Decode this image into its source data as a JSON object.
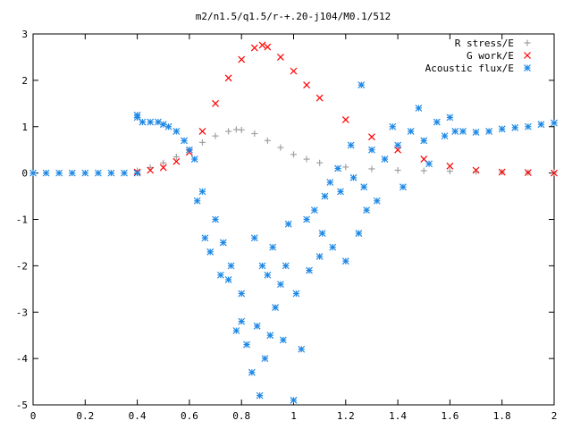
{
  "chart_data": {
    "type": "scatter",
    "title": "m2/n1.5/q1.5/r-+.20-j104/M0.1/512",
    "xlabel": "",
    "ylabel": "",
    "xlim": [
      0,
      2
    ],
    "ylim": [
      -5,
      3
    ],
    "x_ticks": [
      "0",
      "0.2",
      "0.4",
      "0.6",
      "0.8",
      "1",
      "1.2",
      "1.4",
      "1.6",
      "1.8",
      "2"
    ],
    "y_ticks": [
      "3",
      "2",
      "1",
      "0",
      "-1",
      "-2",
      "-3",
      "-4",
      "-5"
    ],
    "grid": false,
    "legend_position": "top-right",
    "series": [
      {
        "name": "R stress/E",
        "marker": "plus",
        "color": "#a0a0a0",
        "x": [
          0.4,
          0.45,
          0.5,
          0.55,
          0.6,
          0.65,
          0.7,
          0.75,
          0.78,
          0.8,
          0.85,
          0.9,
          0.95,
          1.0,
          1.05,
          1.1,
          1.2,
          1.3,
          1.4,
          1.5,
          1.6,
          1.7,
          1.8,
          1.9,
          2.0
        ],
        "y": [
          0.05,
          0.12,
          0.22,
          0.35,
          0.5,
          0.66,
          0.8,
          0.9,
          0.94,
          0.93,
          0.85,
          0.7,
          0.55,
          0.4,
          0.3,
          0.22,
          0.13,
          0.09,
          0.06,
          0.05,
          0.04,
          0.03,
          0.02,
          0.01,
          0.01
        ]
      },
      {
        "name": "G work/E",
        "marker": "cross",
        "color": "#ff0000",
        "x": [
          0.4,
          0.45,
          0.5,
          0.55,
          0.6,
          0.65,
          0.7,
          0.75,
          0.8,
          0.85,
          0.88,
          0.9,
          0.95,
          1.0,
          1.05,
          1.1,
          1.2,
          1.3,
          1.4,
          1.5,
          1.6,
          1.7,
          1.8,
          1.9,
          2.0
        ],
        "y": [
          0.02,
          0.06,
          0.12,
          0.25,
          0.45,
          0.9,
          1.5,
          2.05,
          2.45,
          2.7,
          2.76,
          2.72,
          2.5,
          2.2,
          1.9,
          1.62,
          1.15,
          0.78,
          0.5,
          0.3,
          0.15,
          0.06,
          0.02,
          0.01,
          0.0
        ]
      },
      {
        "name": "Acoustic flux/E",
        "marker": "star",
        "color": "#1e88e5",
        "x": [
          0.0,
          0.05,
          0.1,
          0.15,
          0.2,
          0.25,
          0.3,
          0.35,
          0.4,
          0.4,
          0.4,
          0.42,
          0.45,
          0.48,
          0.5,
          0.52,
          0.55,
          0.58,
          0.6,
          0.62,
          0.63,
          0.65,
          0.66,
          0.68,
          0.7,
          0.72,
          0.73,
          0.75,
          0.76,
          0.78,
          0.8,
          0.8,
          0.82,
          0.84,
          0.85,
          0.86,
          0.87,
          0.88,
          0.89,
          0.9,
          0.91,
          0.92,
          0.93,
          0.95,
          0.96,
          0.97,
          0.98,
          1.0,
          1.01,
          1.03,
          1.05,
          1.06,
          1.08,
          1.1,
          1.11,
          1.12,
          1.14,
          1.15,
          1.17,
          1.18,
          1.2,
          1.22,
          1.23,
          1.25,
          1.26,
          1.27,
          1.28,
          1.3,
          1.32,
          1.35,
          1.38,
          1.4,
          1.42,
          1.45,
          1.48,
          1.5,
          1.52,
          1.55,
          1.58,
          1.6,
          1.62,
          1.65,
          1.7,
          1.75,
          1.8,
          1.85,
          1.9,
          1.95,
          2.0
        ],
        "y": [
          0.0,
          0.0,
          0.0,
          0.0,
          0.0,
          0.0,
          0.0,
          0.0,
          0.0,
          1.2,
          1.25,
          1.1,
          1.1,
          1.1,
          1.05,
          1.0,
          0.9,
          0.7,
          0.5,
          0.3,
          -0.6,
          -0.4,
          -1.4,
          -1.7,
          -1.0,
          -2.2,
          -1.5,
          -2.3,
          -2.0,
          -3.4,
          -3.2,
          -2.6,
          -3.7,
          -4.3,
          -1.4,
          -3.3,
          -4.8,
          -2.0,
          -4.0,
          -2.2,
          -3.5,
          -1.6,
          -2.9,
          -2.4,
          -3.6,
          -2.0,
          -1.1,
          -4.9,
          -2.6,
          -3.8,
          -1.0,
          -2.1,
          -0.8,
          -1.8,
          -1.3,
          -0.5,
          -0.2,
          -1.6,
          0.1,
          -0.4,
          -1.9,
          0.6,
          -0.1,
          -1.3,
          1.9,
          -0.3,
          -0.8,
          0.5,
          -0.6,
          0.3,
          1.0,
          0.6,
          -0.3,
          0.9,
          1.4,
          0.7,
          0.2,
          1.1,
          0.8,
          1.2,
          0.9,
          0.9,
          0.88,
          0.9,
          0.95,
          0.98,
          1.0,
          1.05,
          1.08
        ]
      }
    ]
  }
}
